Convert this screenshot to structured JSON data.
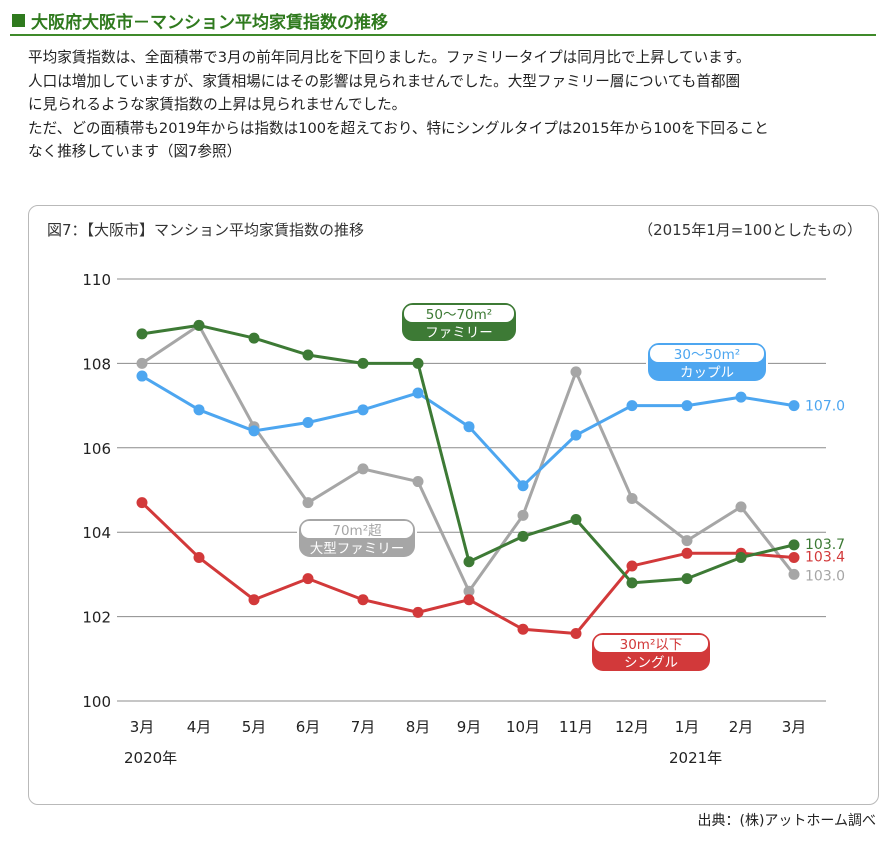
{
  "heading": "大阪府大阪市－マンション平均家賃指数の推移",
  "paragraphs": [
    "平均家賃指数は、全面積帯で3月の前年同月比を下回りました。ファミリータイプは同月比で上昇しています。",
    "人口は増加していますが、家賃相場にはその影響は見られませんでした。大型ファミリー層についても首都圏",
    "に見られるような家賃指数の上昇は見られませんでした。",
    "ただ、どの面積帯も2019年からは指数は100を超えており、特にシングルタイプは2015年から100を下回ること",
    "なく推移しています（図7参照）"
  ],
  "source": "出典：(株)アットホーム調べ",
  "chart_data": {
    "type": "line",
    "title": "図7：【大阪市】マンション平均家賃指数の推移",
    "subtitle": "（2015年1月=100としたもの）",
    "categories": [
      "3月",
      "4月",
      "5月",
      "6月",
      "7月",
      "8月",
      "9月",
      "10月",
      "11月",
      "12月",
      "1月",
      "2月",
      "3月"
    ],
    "year_labels": [
      {
        "index": 0,
        "label": "2020年"
      },
      {
        "index": 10,
        "label": "2021年"
      }
    ],
    "ylim": [
      100,
      110
    ],
    "yticks": [
      100,
      102,
      104,
      106,
      108,
      110
    ],
    "grid": true,
    "series": [
      {
        "key": "family",
        "label_lines": [
          "50～70m²",
          "ファミリー"
        ],
        "color": "#3d7a35",
        "values": [
          108.7,
          108.9,
          108.6,
          108.2,
          108.0,
          108.0,
          103.3,
          103.9,
          104.3,
          102.8,
          102.9,
          103.4,
          103.7
        ],
        "end_label": "103.7"
      },
      {
        "key": "couple",
        "label_lines": [
          "30～50m²",
          "カップル"
        ],
        "color": "#4da6f0",
        "values": [
          107.7,
          106.9,
          106.4,
          106.6,
          106.9,
          107.3,
          106.5,
          105.1,
          106.3,
          107.0,
          107.0,
          107.2,
          107.0
        ],
        "end_label": "107.0"
      },
      {
        "key": "large",
        "label_lines": [
          "70m²超",
          "大型ファミリー"
        ],
        "color": "#a6a6a6",
        "values": [
          108.0,
          108.9,
          106.5,
          104.7,
          105.5,
          105.2,
          102.6,
          104.4,
          107.8,
          104.8,
          103.8,
          104.6,
          103.0
        ],
        "end_label": "103.0"
      },
      {
        "key": "single",
        "label_lines": [
          "30m²以下",
          "シングル"
        ],
        "color": "#d2393a",
        "values": [
          104.7,
          103.4,
          102.4,
          102.9,
          102.4,
          102.1,
          102.4,
          101.7,
          101.6,
          103.2,
          103.5,
          103.5,
          103.4
        ],
        "end_label": "103.4"
      }
    ]
  }
}
